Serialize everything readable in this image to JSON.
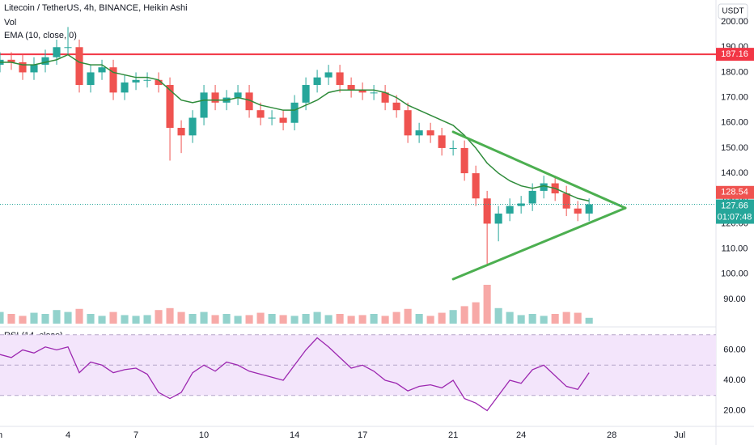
{
  "chart_data": {
    "type": "candlestick",
    "title": "Litecoin / TetherUS, 4h, BINANCE, Heikin Ashi",
    "currency": "USDT",
    "volume_label": "Vol",
    "ema_label": "EMA (10, close, 0)",
    "x": [
      1,
      1.5,
      2,
      2.5,
      3,
      3.5,
      4,
      4.5,
      5,
      5.5,
      6,
      6.5,
      7,
      7.5,
      8,
      8.5,
      9,
      9.5,
      10,
      10.5,
      11,
      11.5,
      12,
      12.5,
      13,
      13.5,
      14,
      14.5,
      15,
      15.5,
      16,
      16.5,
      17,
      17.5,
      18,
      18.5,
      19,
      19.5,
      20,
      20.5,
      21,
      21.5,
      22,
      22.5,
      23,
      23.5,
      24,
      24.5,
      25,
      25.5,
      26,
      26.5,
      27
    ],
    "open": [
      183,
      185,
      184,
      180,
      183,
      186,
      190,
      190,
      175,
      180,
      182,
      172,
      176,
      177,
      177,
      175,
      158,
      155,
      162,
      172,
      168,
      170,
      172,
      165,
      162,
      162,
      160,
      168,
      175,
      178,
      180,
      175,
      173,
      172,
      172,
      168,
      165,
      155,
      157,
      155,
      150,
      150,
      140,
      130,
      120,
      124,
      127,
      128,
      133,
      136,
      132,
      126,
      124
    ],
    "high": [
      188,
      188,
      187,
      186,
      189,
      193,
      198,
      193,
      183,
      185,
      185,
      179,
      180,
      180,
      180,
      178,
      161,
      165,
      175,
      175,
      173,
      175,
      175,
      168,
      165,
      165,
      171,
      178,
      181,
      183,
      183,
      178,
      176,
      175,
      175,
      171,
      168,
      160,
      160,
      158,
      153,
      153,
      143,
      133,
      127,
      130,
      131,
      136,
      139,
      139,
      135,
      129,
      130
    ],
    "low": [
      180,
      181,
      177,
      177,
      180,
      183,
      187,
      172,
      172,
      177,
      169,
      169,
      173,
      174,
      172,
      145,
      148,
      152,
      159,
      165,
      165,
      167,
      162,
      159,
      159,
      157,
      157,
      165,
      172,
      175,
      172,
      170,
      169,
      169,
      165,
      162,
      152,
      152,
      152,
      147,
      147,
      137,
      127,
      104,
      113,
      121,
      124,
      125,
      130,
      129,
      123,
      121,
      121
    ],
    "close": [
      185,
      184,
      180,
      183,
      186,
      190,
      190,
      175,
      180,
      182,
      172,
      176,
      177,
      177,
      175,
      158,
      155,
      162,
      172,
      168,
      170,
      172,
      165,
      162,
      162,
      160,
      168,
      175,
      178,
      180,
      175,
      173,
      172,
      172,
      168,
      165,
      155,
      157,
      155,
      150,
      150,
      140,
      130,
      120,
      124,
      127,
      128,
      133,
      136,
      132,
      126,
      124,
      127.66
    ],
    "volume": [
      30,
      25,
      20,
      28,
      25,
      35,
      30,
      38,
      25,
      20,
      30,
      22,
      20,
      22,
      35,
      40,
      30,
      25,
      30,
      22,
      25,
      20,
      22,
      28,
      25,
      22,
      20,
      25,
      30,
      22,
      25,
      20,
      22,
      25,
      20,
      30,
      38,
      25,
      20,
      28,
      35,
      45,
      55,
      100,
      40,
      30,
      22,
      25,
      20,
      25,
      30,
      28,
      15
    ],
    "ema": [
      184,
      184,
      183,
      183,
      184,
      185,
      187,
      184,
      183,
      183,
      180,
      179,
      178,
      178,
      177,
      173,
      169,
      168,
      169,
      169,
      169,
      170,
      169,
      167,
      166,
      165,
      165,
      167,
      169,
      172,
      173,
      173,
      173,
      173,
      172,
      170,
      167,
      165,
      163,
      161,
      159,
      155,
      150,
      144,
      140,
      137,
      135,
      134,
      135,
      134,
      132,
      130,
      129
    ],
    "up_color": "#26a69a",
    "down_color": "#ef5350",
    "ema_color": "#2e8b3a",
    "xlim": [
      1,
      32.6
    ],
    "xticks": [
      {
        "value": 1,
        "label": "n"
      },
      4,
      7,
      10,
      14,
      17,
      21,
      24,
      28,
      {
        "value": 31,
        "label": "Jul"
      }
    ],
    "ylim": [
      79.7,
      208.7
    ],
    "yticks": [
      {
        "value": 90,
        "label": "90.00"
      },
      {
        "value": 100,
        "label": "100.00"
      },
      {
        "value": 110,
        "label": "110.00"
      },
      {
        "value": 120,
        "label": "120.00"
      },
      {
        "value": 130,
        "label": "130.00"
      },
      {
        "value": 140,
        "label": "140.00"
      },
      {
        "value": 150,
        "label": "150.00"
      },
      {
        "value": 160,
        "label": "160.00"
      },
      {
        "value": 170,
        "label": "170.00"
      },
      {
        "value": 180,
        "label": "180.00"
      },
      {
        "value": 190,
        "label": "190.00"
      },
      {
        "value": 200,
        "label": "200.00"
      }
    ],
    "grid": false,
    "level": {
      "value": 187.16,
      "label": "187.16",
      "color": "#f23645"
    },
    "price_tags": [
      {
        "value": 128.54,
        "label": "128.54",
        "color": "#ef5350"
      },
      {
        "value": 127.66,
        "label": "127.66",
        "color": "#26a69a",
        "dotted": true
      }
    ],
    "countdown": "01:07:48",
    "trendlines": [
      {
        "x": [
          21,
          28.6
        ],
        "y": [
          156.4,
          126.2
        ],
        "color": "#4caf50"
      },
      {
        "x": [
          21,
          28.6
        ],
        "y": [
          98,
          126.2
        ],
        "color": "#4caf50"
      }
    ],
    "rsi": {
      "title": "RSI (14, close)",
      "values": [
        57,
        55,
        60,
        58,
        62,
        60,
        62,
        45,
        52,
        50,
        45,
        47,
        48,
        44,
        32,
        28,
        32,
        45,
        50,
        46,
        52,
        50,
        46,
        44,
        42,
        40,
        50,
        60,
        68,
        62,
        55,
        48,
        50,
        46,
        40,
        38,
        33,
        36,
        37,
        35,
        40,
        28,
        25,
        20,
        30,
        40,
        38,
        47,
        50,
        43,
        36,
        34,
        45
      ],
      "color": "#9c27b0",
      "band_color": "#f3e5fb",
      "ylim": [
        10.7,
        72
      ],
      "yticks": [
        {
          "value": 20,
          "label": "20.00"
        },
        {
          "value": 40,
          "label": "40.00"
        },
        {
          "value": 60,
          "label": "60.00"
        }
      ],
      "levels": [
        70,
        50,
        30
      ]
    }
  }
}
